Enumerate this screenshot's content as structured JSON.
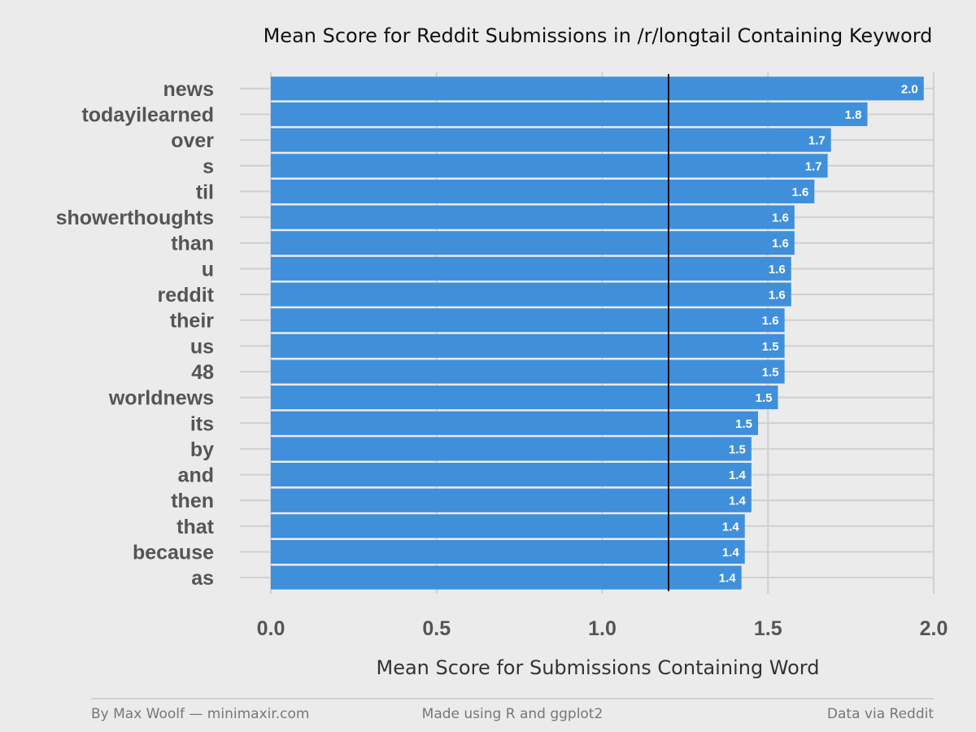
{
  "chart_data": {
    "type": "bar",
    "orientation": "horizontal",
    "title": "Mean Score for Reddit Submissions in /r/longtail Containing Keyword",
    "xlabel": "Mean Score for Submissions Containing Word",
    "ylabel": "",
    "xlim": [
      0,
      2.0
    ],
    "xticks": [
      "0.0",
      "0.5",
      "1.0",
      "1.5",
      "2.0"
    ],
    "reference_line": 1.2,
    "grid": true,
    "bar_color": "#3f8fdb",
    "categories": [
      "news",
      "todayilearned",
      "over",
      "s",
      "til",
      "showerthoughts",
      "than",
      "u",
      "reddit",
      "their",
      "us",
      "48",
      "worldnews",
      "its",
      "by",
      "and",
      "then",
      "that",
      "because",
      "as"
    ],
    "values": [
      1.97,
      1.8,
      1.69,
      1.68,
      1.64,
      1.58,
      1.58,
      1.57,
      1.57,
      1.55,
      1.55,
      1.55,
      1.53,
      1.47,
      1.45,
      1.45,
      1.45,
      1.43,
      1.43,
      1.42
    ],
    "data_labels": [
      "2.0",
      "1.8",
      "1.7",
      "1.7",
      "1.6",
      "1.6",
      "1.6",
      "1.6",
      "1.6",
      "1.6",
      "1.5",
      "1.5",
      "1.5",
      "1.5",
      "1.5",
      "1.4",
      "1.4",
      "1.4",
      "1.4",
      "1.4"
    ]
  },
  "footer": {
    "left": "By Max Woolf — minimaxir.com",
    "center": "Made using R and ggplot2",
    "right": "Data via Reddit"
  }
}
